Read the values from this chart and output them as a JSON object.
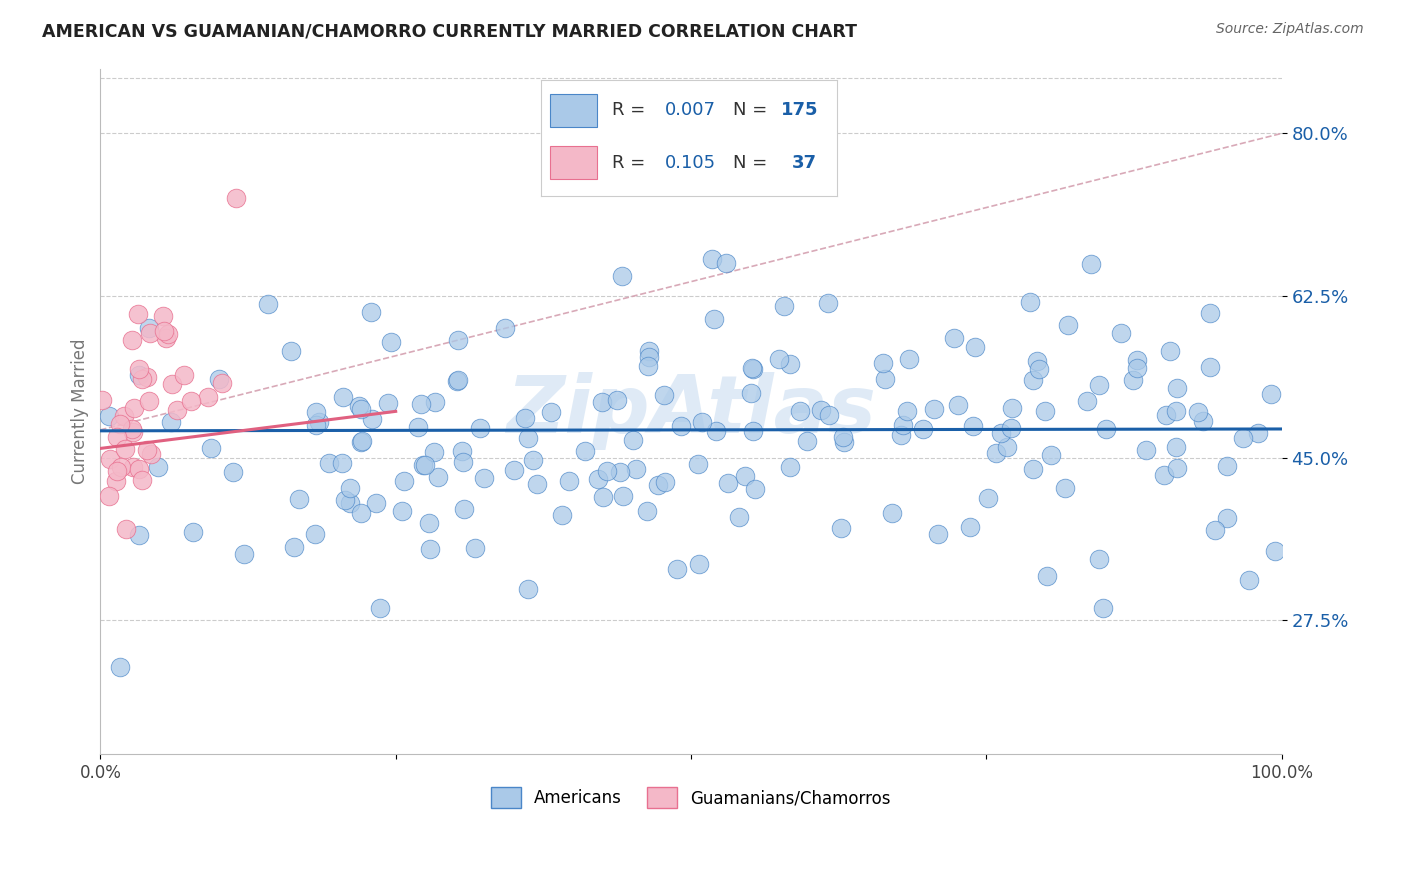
{
  "title": "AMERICAN VS GUAMANIAN/CHAMORRO CURRENTLY MARRIED CORRELATION CHART",
  "source": "Source: ZipAtlas.com",
  "ylabel": "Currently Married",
  "legend_blue_R": "0.007",
  "legend_blue_N": "175",
  "legend_pink_R": "0.105",
  "legend_pink_N": "37",
  "blue_fill_color": "#aac9e8",
  "pink_fill_color": "#f4b8c8",
  "blue_edge_color": "#4a86c8",
  "pink_edge_color": "#e87090",
  "blue_trend_color": "#1a5fa8",
  "pink_trend_color": "#e06080",
  "dashed_trend_color": "#d4a0b0",
  "ytick_vals": [
    0.275,
    0.45,
    0.625,
    0.8
  ],
  "ytick_labels": [
    "27.5%",
    "45.0%",
    "62.5%",
    "80.0%"
  ],
  "ymin": 0.13,
  "ymax": 0.87,
  "xmin": 0.0,
  "xmax": 1.0,
  "background_color": "#ffffff",
  "grid_color": "#cccccc",
  "watermark_color": "#c5daf0"
}
